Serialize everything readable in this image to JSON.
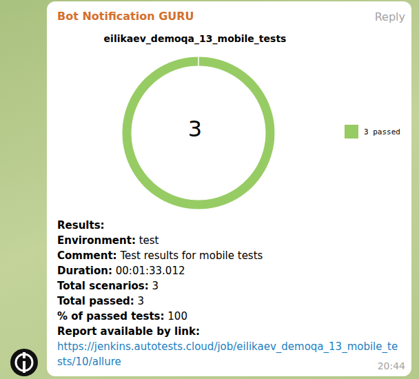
{
  "message": {
    "sender": "Bot Notification GURU",
    "action": "Reply",
    "time": "20:44",
    "results": {
      "heading": "Results:",
      "fields": [
        {
          "label": "Environment:",
          "value": "test"
        },
        {
          "label": "Comment:",
          "value": "Test results for mobile tests"
        },
        {
          "label": "Duration:",
          "value": "00:01:33.012"
        },
        {
          "label": "Total scenarios:",
          "value": 3
        },
        {
          "label": "Total passed:",
          "value": 3
        },
        {
          "label": "% of passed tests:",
          "value": 100
        }
      ],
      "link_label": "Report available by link:",
      "link": "https://jenkins.autotests.cloud/job/eilikaev_demoqa_13_mobile_tests/10/allure"
    }
  },
  "chart_data": {
    "type": "donut",
    "title": "eilikaev_demoqa_13_mobile_tests",
    "categories": [
      "3 passed"
    ],
    "values": [
      3
    ],
    "colors": [
      "#97cc64"
    ],
    "total": 3,
    "legend": "right"
  }
}
